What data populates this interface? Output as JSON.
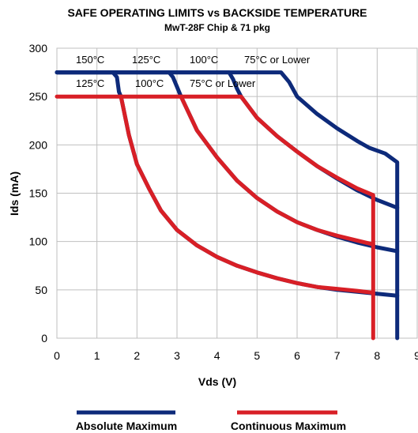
{
  "chart_data": {
    "type": "line",
    "title": "SAFE OPERATING LIMITS vs BACKSIDE TEMPERATURE",
    "subtitle": "MwT-28F Chip & 71 pkg",
    "xlabel": "Vds (V)",
    "ylabel": "Ids (mA)",
    "xlim": [
      0,
      9
    ],
    "ylim": [
      0,
      300
    ],
    "xticks": [
      0,
      1,
      2,
      3,
      4,
      5,
      6,
      7,
      8,
      9
    ],
    "yticks": [
      0,
      50,
      100,
      150,
      200,
      250,
      300
    ],
    "grid": true,
    "legend_position": "bottom",
    "colors": {
      "absolute": "#0d2a7a",
      "continuous": "#d81f26"
    },
    "legend": [
      {
        "label": "Absolute Maximum",
        "color": "#0d2a7a"
      },
      {
        "label": "Continuous Maximum",
        "color": "#d81f26"
      }
    ],
    "annotations": {
      "absolute": [
        "150°C",
        "125°C",
        "100°C",
        "75°C or Lower"
      ],
      "continuous": [
        "125°C",
        "100°C",
        "75°C or Lower"
      ]
    },
    "series": [
      {
        "group": "absolute",
        "label": "150°C",
        "points": [
          [
            0,
            275
          ],
          [
            1.4,
            275
          ],
          [
            1.5,
            270
          ],
          [
            1.55,
            255
          ],
          [
            1.6,
            250
          ]
        ]
      },
      {
        "group": "absolute",
        "label": "125°C",
        "points": [
          [
            0,
            275
          ],
          [
            2.8,
            275
          ],
          [
            2.9,
            270
          ],
          [
            3.0,
            260
          ],
          [
            3.1,
            250
          ]
        ]
      },
      {
        "group": "absolute",
        "label": "100°C",
        "points": [
          [
            0,
            275
          ],
          [
            4.3,
            275
          ],
          [
            4.4,
            268
          ],
          [
            4.5,
            258
          ],
          [
            4.6,
            250
          ]
        ]
      },
      {
        "group": "absolute",
        "label": "75°C or Lower",
        "points": [
          [
            0,
            275
          ],
          [
            5.6,
            275
          ],
          [
            5.8,
            265
          ],
          [
            6.0,
            250
          ],
          [
            6.5,
            232
          ],
          [
            7.0,
            217
          ],
          [
            7.5,
            204
          ],
          [
            7.8,
            197
          ],
          [
            8.2,
            191
          ],
          [
            8.5,
            182
          ],
          [
            8.5,
            0
          ]
        ]
      },
      {
        "group": "absolute",
        "label": "100°C",
        "points": [
          [
            4.6,
            250
          ],
          [
            5.0,
            228
          ],
          [
            5.5,
            209
          ],
          [
            6.0,
            193
          ],
          [
            6.5,
            178
          ],
          [
            7.0,
            165
          ],
          [
            7.5,
            153
          ],
          [
            8.0,
            143
          ],
          [
            8.5,
            135
          ]
        ]
      },
      {
        "group": "absolute",
        "label": "125°C",
        "points": [
          [
            3.1,
            250
          ],
          [
            3.5,
            215
          ],
          [
            4.0,
            187
          ],
          [
            4.5,
            163
          ],
          [
            5.0,
            145
          ],
          [
            5.5,
            131
          ],
          [
            6.0,
            120
          ],
          [
            6.5,
            112
          ],
          [
            7.0,
            105
          ],
          [
            7.5,
            99
          ],
          [
            8.0,
            94
          ],
          [
            8.5,
            90
          ]
        ]
      },
      {
        "group": "absolute",
        "label": "150°C",
        "points": [
          [
            1.6,
            250
          ],
          [
            1.8,
            210
          ],
          [
            2.0,
            180
          ],
          [
            2.3,
            155
          ],
          [
            2.6,
            132
          ],
          [
            3.0,
            112
          ],
          [
            3.5,
            96
          ],
          [
            4.0,
            84
          ],
          [
            4.5,
            75
          ],
          [
            5.0,
            68
          ],
          [
            5.5,
            62
          ],
          [
            6.0,
            57
          ],
          [
            6.5,
            53
          ],
          [
            7.0,
            50
          ],
          [
            7.5,
            48
          ],
          [
            8.0,
            46
          ],
          [
            8.5,
            44
          ]
        ]
      },
      {
        "group": "continuous",
        "label": "75°C or Lower",
        "points": [
          [
            0,
            250
          ],
          [
            4.6,
            250
          ],
          [
            5.0,
            228
          ],
          [
            5.5,
            209
          ],
          [
            6.0,
            193
          ],
          [
            6.5,
            178
          ],
          [
            7.0,
            166
          ],
          [
            7.5,
            155
          ],
          [
            7.9,
            148
          ],
          [
            7.9,
            0
          ]
        ]
      },
      {
        "group": "continuous",
        "label": "100°C",
        "points": [
          [
            3.1,
            250
          ],
          [
            3.5,
            215
          ],
          [
            4.0,
            187
          ],
          [
            4.5,
            163
          ],
          [
            5.0,
            145
          ],
          [
            5.5,
            131
          ],
          [
            6.0,
            120
          ],
          [
            6.5,
            112
          ],
          [
            7.0,
            106
          ],
          [
            7.5,
            101
          ],
          [
            7.9,
            97
          ]
        ]
      },
      {
        "group": "continuous",
        "label": "125°C",
        "points": [
          [
            1.6,
            250
          ],
          [
            1.8,
            210
          ],
          [
            2.0,
            180
          ],
          [
            2.3,
            155
          ],
          [
            2.6,
            132
          ],
          [
            3.0,
            112
          ],
          [
            3.5,
            96
          ],
          [
            4.0,
            84
          ],
          [
            4.5,
            75
          ],
          [
            5.0,
            68
          ],
          [
            5.5,
            62
          ],
          [
            6.0,
            57
          ],
          [
            6.5,
            53
          ],
          [
            7.0,
            51
          ],
          [
            7.5,
            49
          ],
          [
            7.9,
            47
          ]
        ]
      }
    ]
  }
}
